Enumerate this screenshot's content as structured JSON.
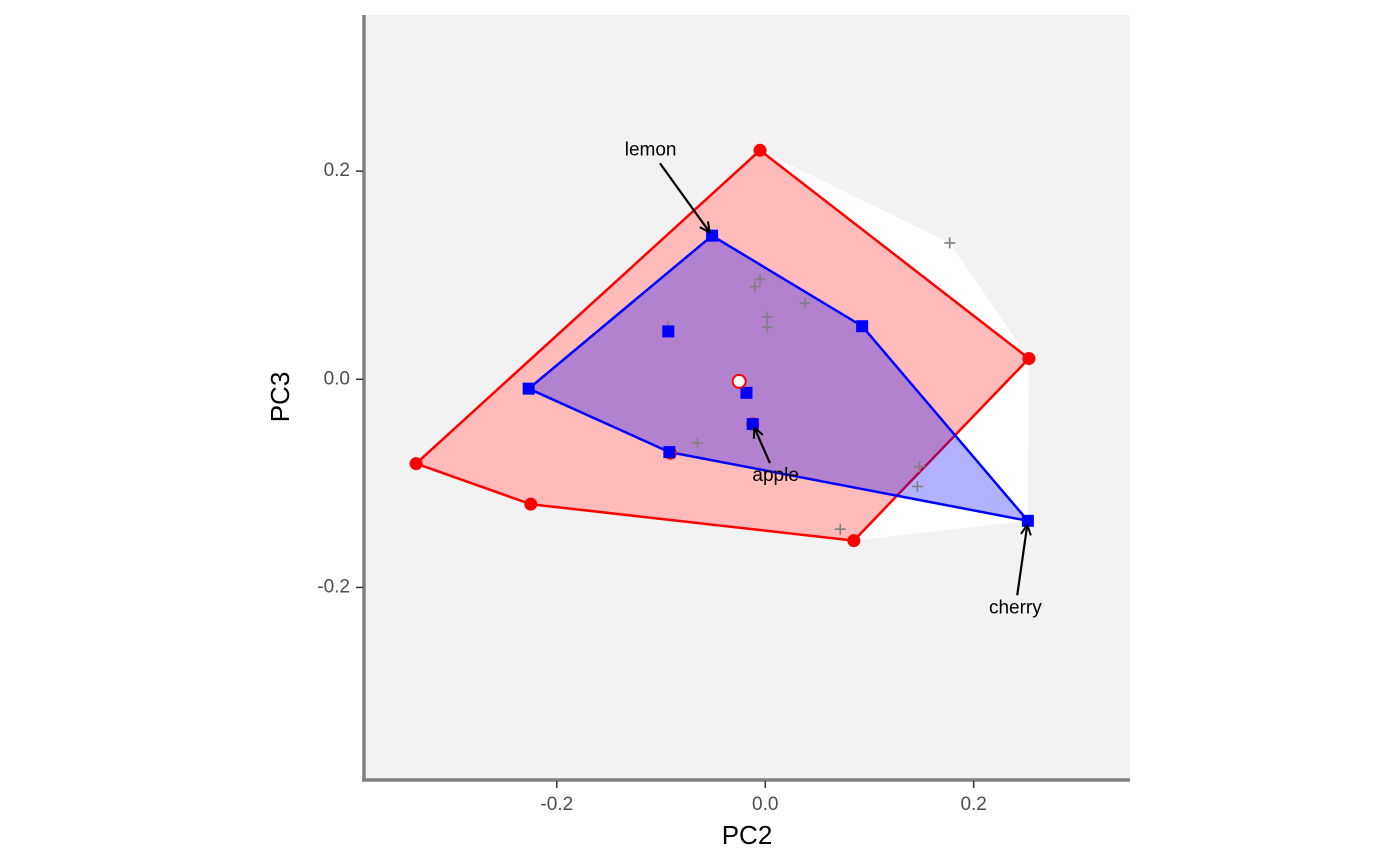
{
  "chart_data": {
    "type": "scatter",
    "title": "",
    "xlabel": "PC2",
    "ylabel": "PC3",
    "xlim": [
      -0.385,
      0.35
    ],
    "ylim": [
      -0.385,
      0.35
    ],
    "x_ticks": [
      {
        "value": -0.2,
        "label": "-0.2"
      },
      {
        "value": 0.0,
        "label": "0.0"
      },
      {
        "value": 0.2,
        "label": "0.2"
      }
    ],
    "y_ticks": [
      {
        "value": -0.2,
        "label": "-0.2"
      },
      {
        "value": 0.0,
        "label": "0.0"
      },
      {
        "value": 0.2,
        "label": "0.2"
      }
    ],
    "grid": false,
    "legend": "none",
    "colors": {
      "panel_background": "#f2f2f2",
      "overall_hull": "#ffffff",
      "red": "#ff0000",
      "red_fill": "rgba(255,0,0,0.27)",
      "blue": "#0000ff",
      "blue_fill": "rgba(0,0,255,0.3)",
      "cross": "#7f7f7f",
      "axis_line": "#7f7f7f"
    },
    "overall_hull": [
      [
        -0.335,
        -0.081
      ],
      [
        -0.005,
        0.22
      ],
      [
        0.177,
        0.131
      ],
      [
        0.253,
        0.02
      ],
      [
        0.252,
        -0.136
      ],
      [
        0.085,
        -0.155
      ],
      [
        -0.225,
        -0.12
      ]
    ],
    "series": [
      {
        "color": "red",
        "marker": "circle",
        "hull": [
          [
            -0.335,
            -0.081
          ],
          [
            -0.005,
            0.22
          ],
          [
            0.253,
            0.02
          ],
          [
            0.085,
            -0.155
          ],
          [
            -0.225,
            -0.12
          ]
        ],
        "points": [
          [
            -0.335,
            -0.081
          ],
          [
            -0.005,
            0.22
          ],
          [
            0.253,
            0.02
          ],
          [
            0.085,
            -0.155
          ],
          [
            -0.225,
            -0.12
          ],
          [
            -0.091,
            -0.071
          ],
          [
            -0.012,
            -0.043
          ]
        ]
      },
      {
        "color": "blue",
        "marker": "square",
        "hull": [
          [
            -0.227,
            -0.009
          ],
          [
            -0.051,
            0.138
          ],
          [
            0.093,
            0.051
          ],
          [
            0.252,
            -0.136
          ],
          [
            -0.092,
            -0.07
          ]
        ],
        "points": [
          [
            -0.227,
            -0.009
          ],
          [
            -0.051,
            0.138
          ],
          [
            0.093,
            0.051
          ],
          [
            0.252,
            -0.136
          ],
          [
            -0.092,
            -0.07
          ],
          [
            -0.093,
            0.046
          ],
          [
            -0.018,
            -0.013
          ],
          [
            -0.012,
            -0.043
          ]
        ]
      }
    ],
    "mean_point": [
      -0.025,
      -0.002
    ],
    "other_points": [
      [
        0.177,
        0.131
      ],
      [
        -0.005,
        0.096
      ],
      [
        -0.01,
        0.089
      ],
      [
        0.038,
        0.073
      ],
      [
        0.002,
        0.06
      ],
      [
        0.002,
        0.05
      ],
      [
        -0.093,
        0.051
      ],
      [
        -0.065,
        -0.061
      ],
      [
        0.148,
        -0.084
      ],
      [
        0.146,
        -0.103
      ],
      [
        0.072,
        -0.144
      ],
      [
        -0.012,
        -0.043
      ]
    ],
    "annotations": [
      {
        "label": "lemon",
        "text_at": [
          -0.11,
          0.22
        ],
        "target": [
          -0.051,
          0.138
        ]
      },
      {
        "label": "apple",
        "text_at": [
          0.01,
          -0.093
        ],
        "target": [
          -0.012,
          -0.043
        ]
      },
      {
        "label": "cherry",
        "text_at": [
          0.24,
          -0.22
        ],
        "target": [
          0.252,
          -0.136
        ]
      }
    ]
  }
}
